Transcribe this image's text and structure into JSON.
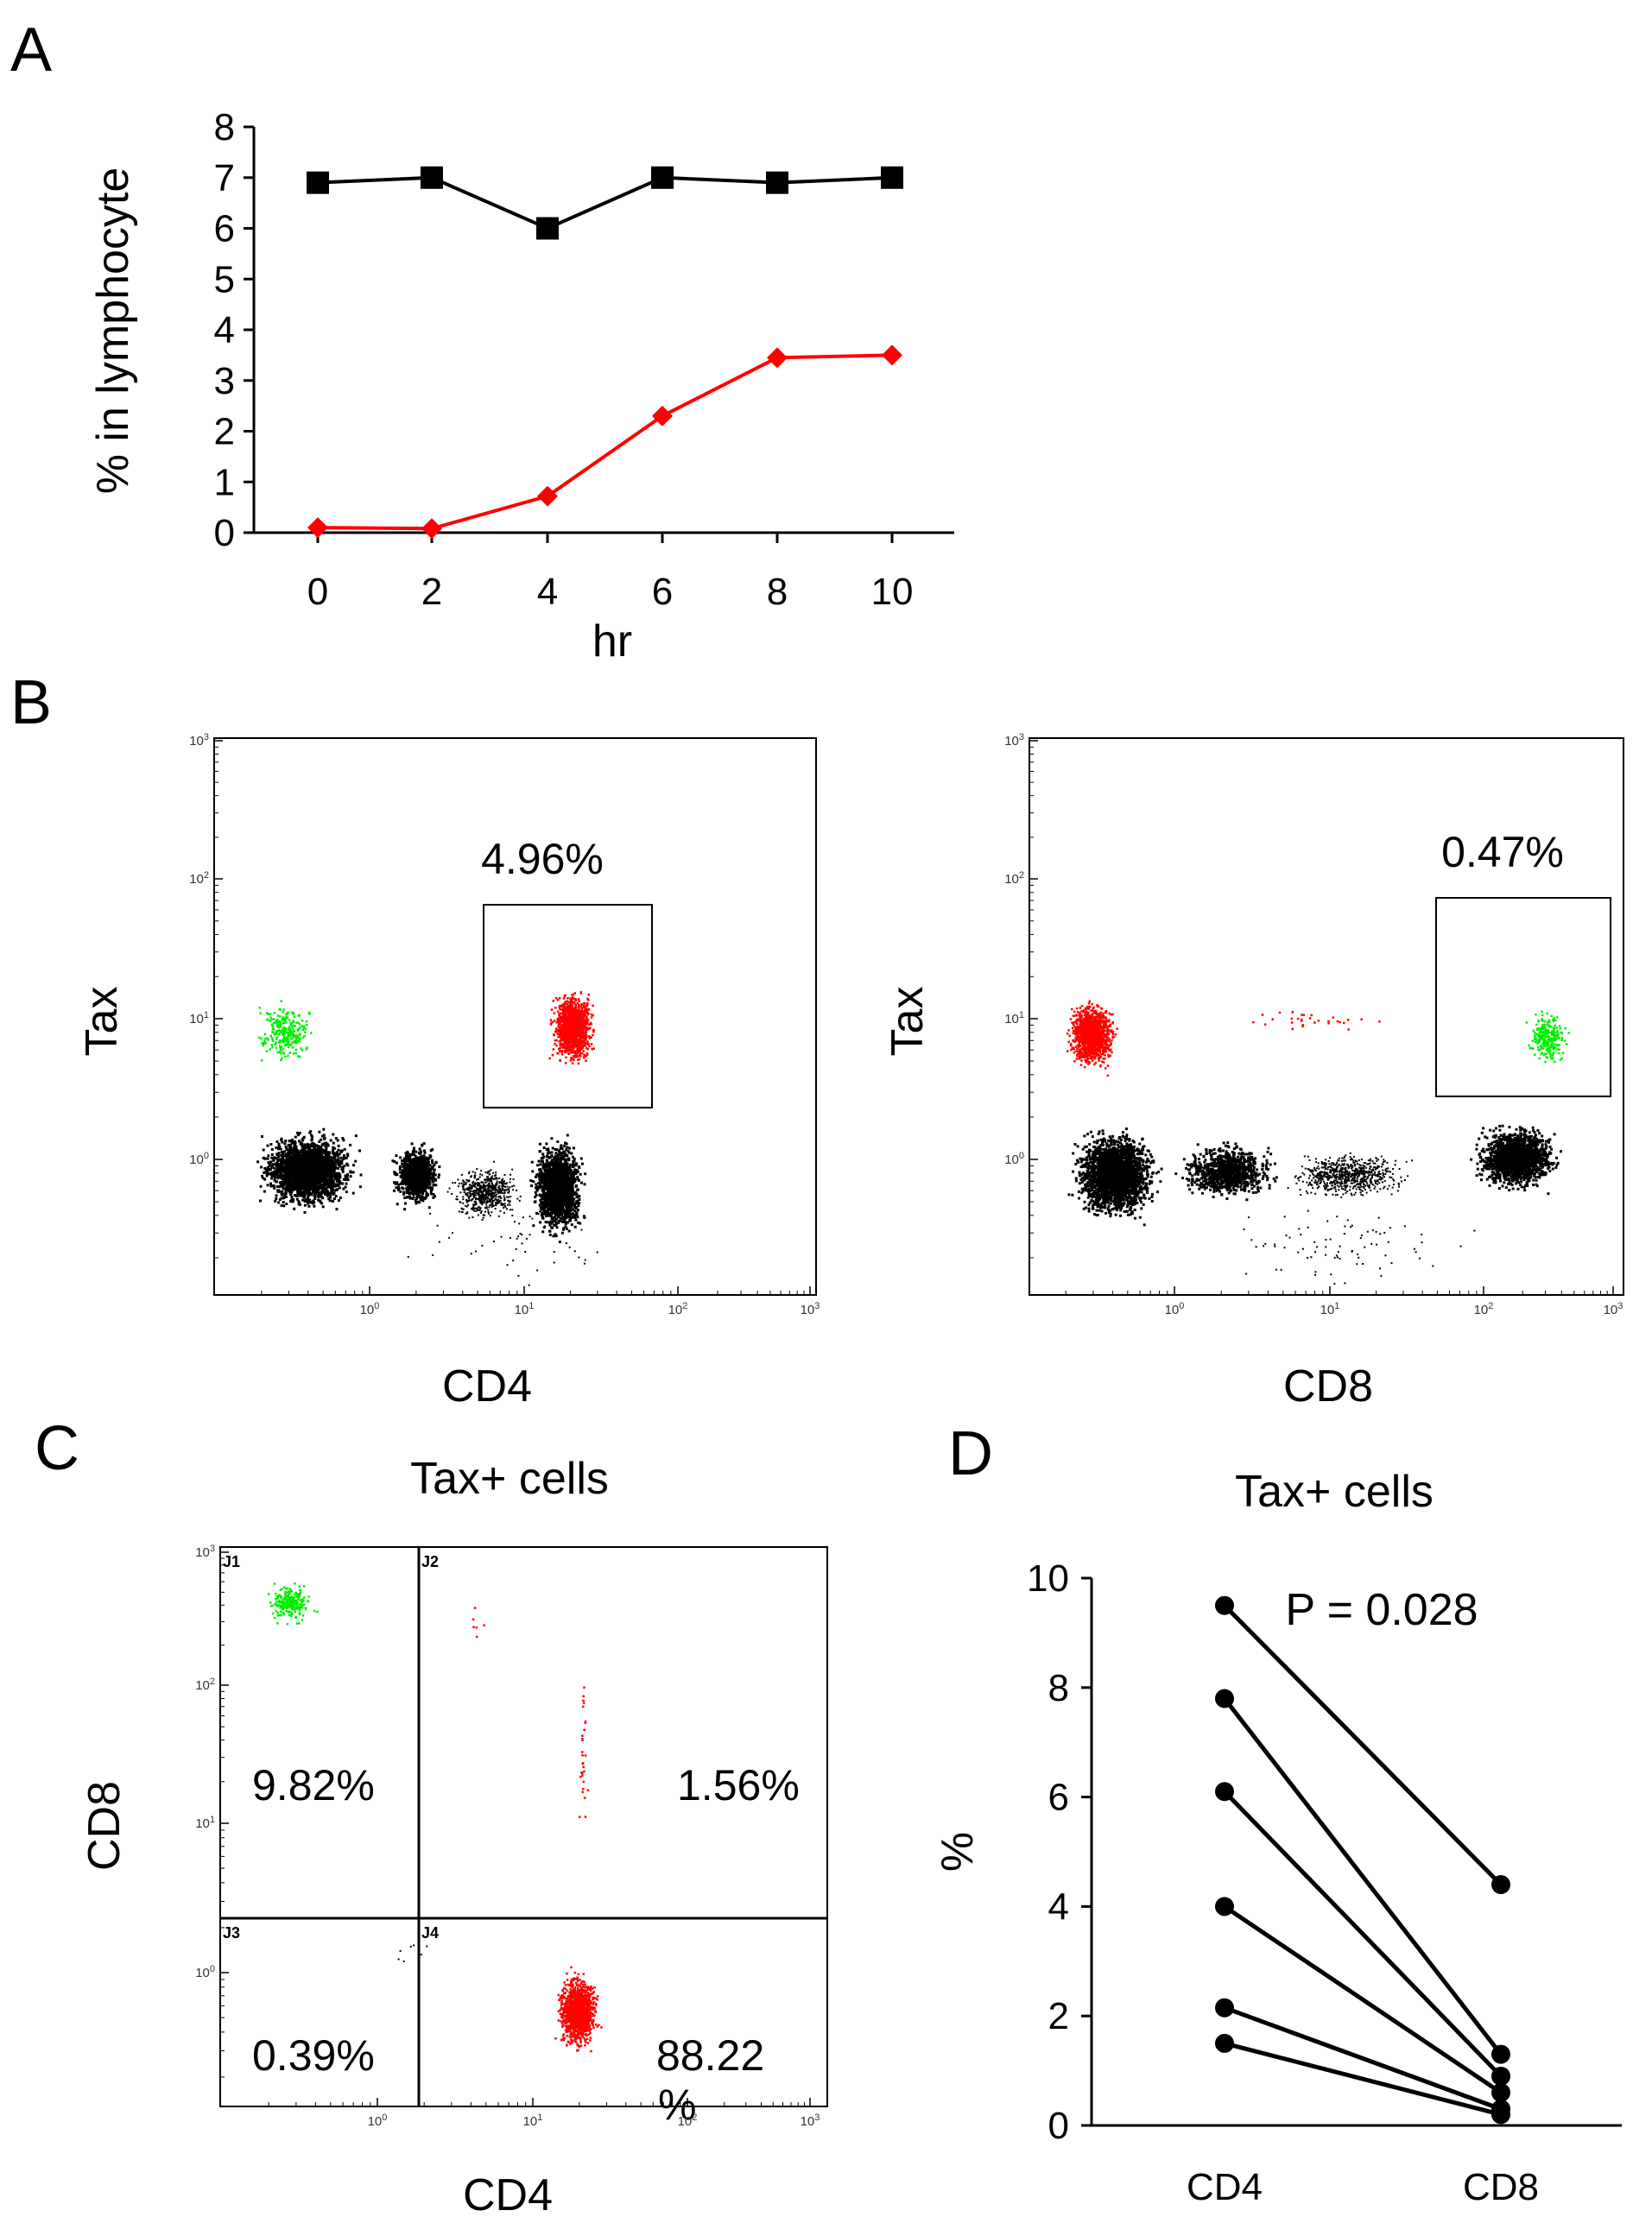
{
  "colors": {
    "black": "#000000",
    "red": "#ff0000",
    "green": "#00ee00",
    "marker_red": "#e8141c"
  },
  "chart_data": [
    {
      "panel": "A",
      "type": "line",
      "x": [
        0,
        2,
        4,
        6,
        8,
        10
      ],
      "xlabel": "hr",
      "ylabel": "% in lymphocyte",
      "xticks": [
        "0",
        "2",
        "4",
        "6",
        "8",
        "10"
      ],
      "yticks": [
        "0",
        "1",
        "2",
        "3",
        "4",
        "5",
        "6",
        "7",
        "8"
      ],
      "ylim": [
        0,
        8
      ],
      "series": [
        {
          "name": "black-squares",
          "color": "#000000",
          "marker": "square",
          "values": [
            6.9,
            7.0,
            6.0,
            7.0,
            6.9,
            7.0
          ]
        },
        {
          "name": "red-diamonds",
          "color": "#ff0000",
          "marker": "diamond",
          "values": [
            0.1,
            0.08,
            0.72,
            2.3,
            3.45,
            3.5
          ]
        }
      ]
    },
    {
      "panel": "B-left",
      "type": "scatter",
      "xlabel": "CD4",
      "ylabel": "Tax",
      "scale": "log",
      "xticks": [
        "10^0",
        "10^1",
        "10^2",
        "10^3"
      ],
      "yticks": [
        "10^0",
        "10^1",
        "10^2",
        "10^3"
      ],
      "gate_percent": "4.96%"
    },
    {
      "panel": "B-right",
      "type": "scatter",
      "xlabel": "CD8",
      "ylabel": "Tax",
      "scale": "log",
      "xticks": [
        "10^0",
        "10^1",
        "10^2",
        "10^3"
      ],
      "yticks": [
        "10^0",
        "10^1",
        "10^2",
        "10^3"
      ],
      "gate_percent": "0.47%"
    },
    {
      "panel": "C",
      "type": "scatter",
      "title": "Tax+ cells",
      "xlabel": "CD4",
      "ylabel": "CD8",
      "scale": "log",
      "xticks": [
        "10^0",
        "10^1",
        "10^2",
        "10^3"
      ],
      "yticks": [
        "10^0",
        "10^1",
        "10^2",
        "10^3"
      ],
      "quadrants": [
        {
          "name": "J1",
          "percent": "9.82%"
        },
        {
          "name": "J2",
          "percent": "1.56%"
        },
        {
          "name": "J3",
          "percent": "0.39%"
        },
        {
          "name": "J4",
          "percent": "88.22",
          "percent_suffix": "%"
        }
      ]
    },
    {
      "panel": "D",
      "type": "line",
      "title": "Tax+ cells",
      "categories": [
        "CD4",
        "CD8"
      ],
      "ylabel": "%",
      "ylim": [
        0,
        10
      ],
      "yticks": [
        "0",
        "2",
        "4",
        "6",
        "8",
        "10"
      ],
      "annotation": "P = 0.028",
      "pairs": [
        {
          "CD4": 9.5,
          "CD8": 4.4
        },
        {
          "CD4": 7.8,
          "CD8": 1.3
        },
        {
          "CD4": 6.1,
          "CD8": 0.9
        },
        {
          "CD4": 4.0,
          "CD8": 0.6
        },
        {
          "CD4": 2.15,
          "CD8": 0.3
        },
        {
          "CD4": 1.5,
          "CD8": 0.2
        }
      ]
    }
  ],
  "panels": {
    "a": "A",
    "b": "B",
    "c": "C",
    "d": "D"
  }
}
